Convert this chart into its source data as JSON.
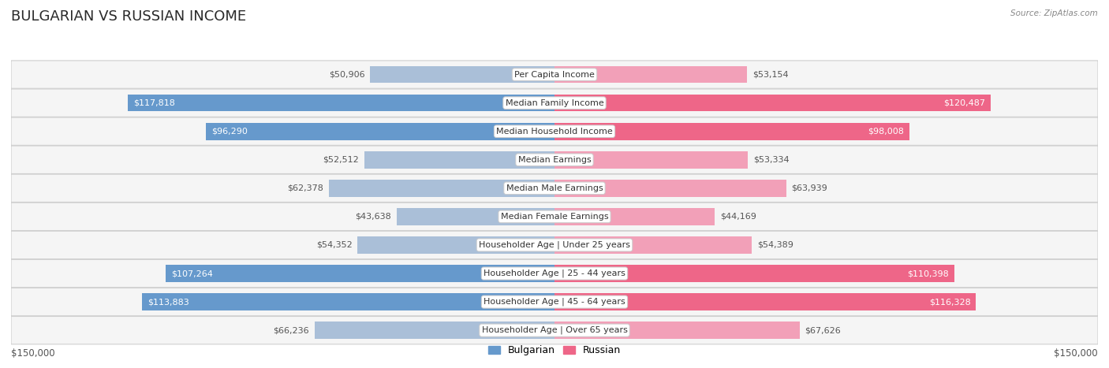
{
  "title": "BULGARIAN VS RUSSIAN INCOME",
  "source": "Source: ZipAtlas.com",
  "categories": [
    "Per Capita Income",
    "Median Family Income",
    "Median Household Income",
    "Median Earnings",
    "Median Male Earnings",
    "Median Female Earnings",
    "Householder Age | Under 25 years",
    "Householder Age | 25 - 44 years",
    "Householder Age | 45 - 64 years",
    "Householder Age | Over 65 years"
  ],
  "bulgarian_values": [
    50906,
    117818,
    96290,
    52512,
    62378,
    43638,
    54352,
    107264,
    113883,
    66236
  ],
  "russian_values": [
    53154,
    120487,
    98008,
    53334,
    63939,
    44169,
    54389,
    110398,
    116328,
    67626
  ],
  "bulgarian_labels": [
    "$50,906",
    "$117,818",
    "$96,290",
    "$52,512",
    "$62,378",
    "$43,638",
    "$54,352",
    "$107,264",
    "$113,883",
    "$66,236"
  ],
  "russian_labels": [
    "$53,154",
    "$120,487",
    "$98,008",
    "$53,334",
    "$63,939",
    "$44,169",
    "$54,389",
    "$110,398",
    "$116,328",
    "$67,626"
  ],
  "max_value": 150000,
  "bulgarian_color_light": "#aabfd8",
  "bulgarian_color_dark": "#6699cc",
  "russian_color_light": "#f2a0b8",
  "russian_color_dark": "#ee6688",
  "bg_row_color": "#f5f5f5",
  "bg_color": "#ffffff",
  "label_color_inside": "#ffffff",
  "label_color_outside": "#555555",
  "legend_bulgarian": "Bulgarian",
  "legend_russian": "Russian",
  "bottom_label_left": "$150,000",
  "bottom_label_right": "$150,000",
  "title_fontsize": 13,
  "label_fontsize": 8,
  "category_fontsize": 8,
  "axis_fontsize": 8.5,
  "threshold_inside": 70000
}
